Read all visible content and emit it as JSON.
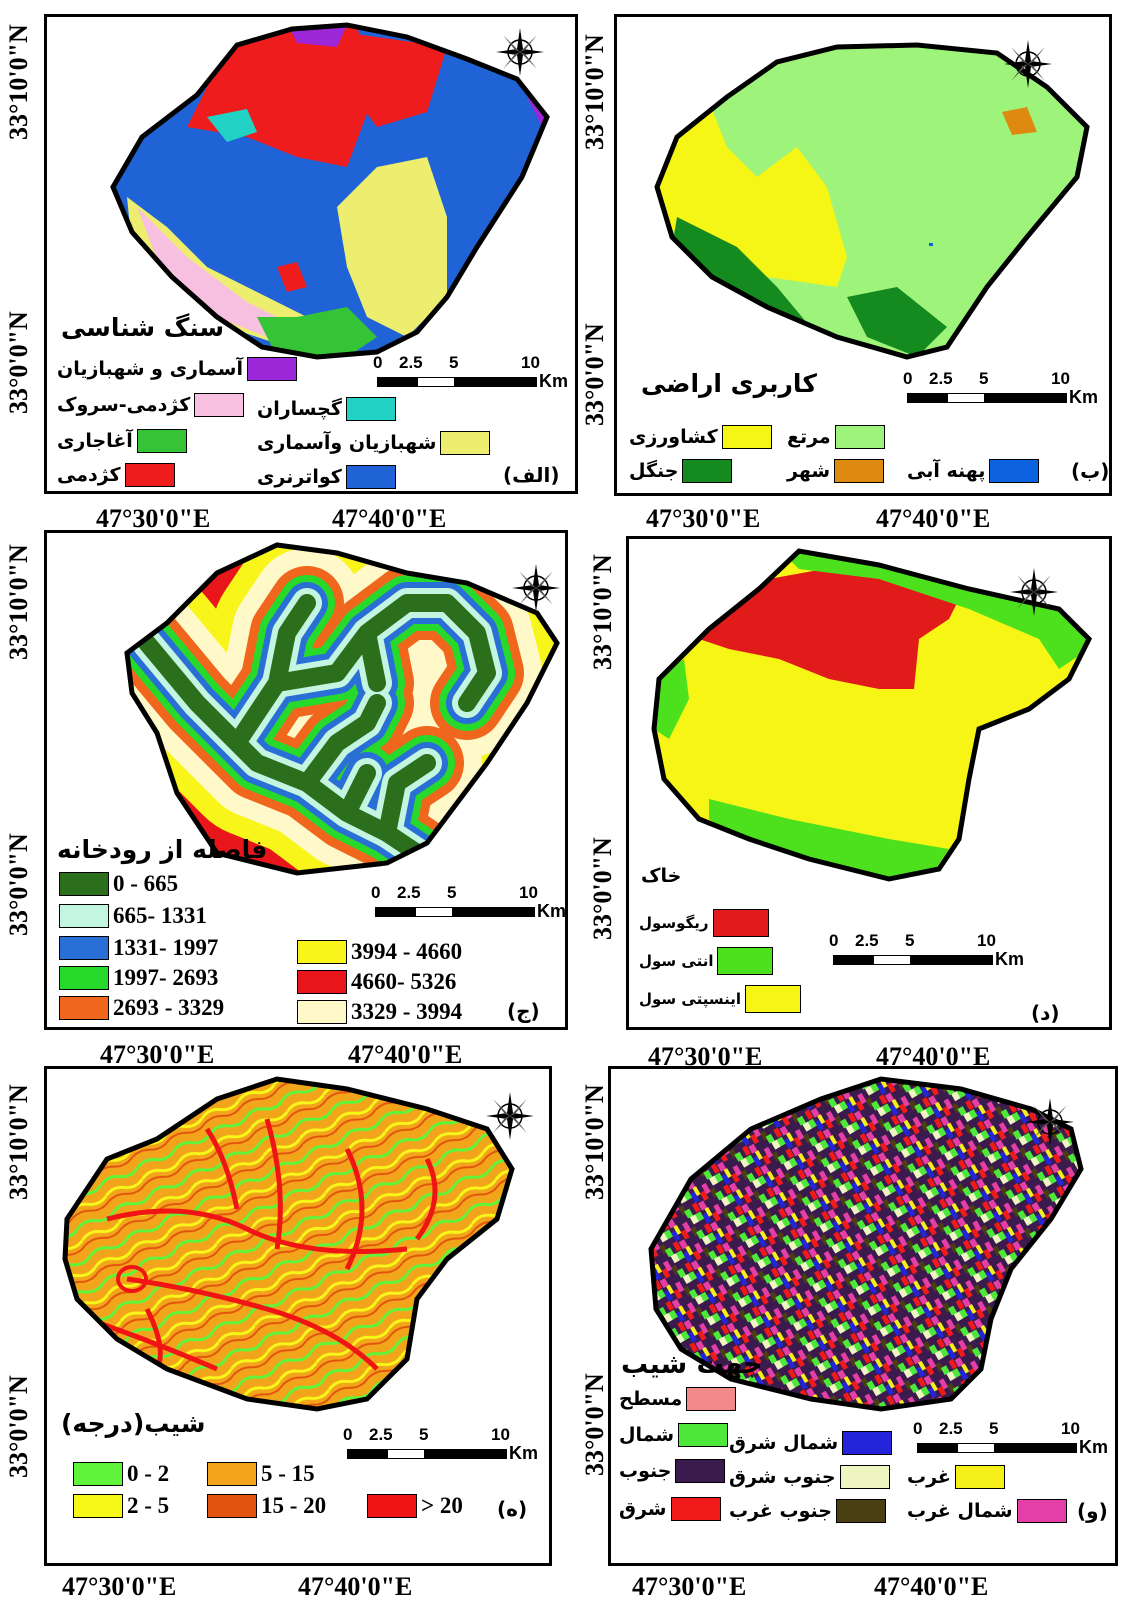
{
  "panels": {
    "alef": {
      "tag": "(الف)",
      "title": "سنگ شناسی",
      "legend": [
        {
          "label": "آسماری و شهبازیان",
          "color": "#9b27d8"
        },
        {
          "label": "کژدمی-سروک",
          "color": "#f7bfe0"
        },
        {
          "label": "گچساران",
          "color": "#22d3c5"
        },
        {
          "label": "آغاجاری",
          "color": "#35c435"
        },
        {
          "label": "شهبازیان وآسماری",
          "color": "#eded70"
        },
        {
          "label": "کژدمی",
          "color": "#ee1c1c"
        },
        {
          "label": "کواترنری",
          "color": "#1f63d6"
        }
      ],
      "scale": {
        "n0": "0",
        "n1": "2.5",
        "n2": "5",
        "n3": "10",
        "unit": "Km"
      },
      "lat_top": "33°10'0\"N",
      "lat_bottom": "33°0'0\"N",
      "lon_left": "47°30'0\"E",
      "lon_right": "47°40'0\"E"
    },
    "be": {
      "tag": "(ب)",
      "title": "کاربری اراضی",
      "legend": [
        {
          "label": "کشاورزی",
          "color": "#f5f516"
        },
        {
          "label": "مرتع",
          "color": "#9ef47a"
        },
        {
          "label": "جنگل",
          "color": "#158a1e"
        },
        {
          "label": "شهر",
          "color": "#de8a10"
        },
        {
          "label": "پهنه آبی",
          "color": "#0d62e0"
        }
      ],
      "scale": {
        "n0": "0",
        "n1": "2.5",
        "n2": "5",
        "n3": "10",
        "unit": "Km"
      },
      "lat_top": "33°10'0\"N",
      "lat_bottom": "33°0'0\"N",
      "lon_left": "47°30'0\"E",
      "lon_right": "47°40'0\"E"
    },
    "jim": {
      "tag": "(ج)",
      "title": "فاصله از رودخانه",
      "legend": [
        {
          "label": "0 - 665",
          "color": "#2b6e1c"
        },
        {
          "label": "665- 1331",
          "color": "#c4f5e0"
        },
        {
          "label": "1331- 1997",
          "color": "#2a6fd6"
        },
        {
          "label": "1997- 2693",
          "color": "#27d92a"
        },
        {
          "label": "2693 - 3329",
          "color": "#f0661d"
        },
        {
          "label": "3994 - 4660",
          "color": "#f7f51a"
        },
        {
          "label": "4660- 5326",
          "color": "#e8161a"
        },
        {
          "label": "3329 - 3994",
          "color": "#fff8c8"
        }
      ],
      "scale": {
        "n0": "0",
        "n1": "2.5",
        "n2": "5",
        "n3": "10",
        "unit": "Km"
      },
      "lat_top": "33°10'0\"N",
      "lat_bottom": "33°0'0\"N",
      "lon_left": "47°30'0\"E",
      "lon_right": "47°40'0\"E"
    },
    "dal": {
      "tag": "(د)",
      "title": "خاک",
      "legend": [
        {
          "label": "ریگوسول",
          "color": "#e11a1a"
        },
        {
          "label": "انتی سول",
          "color": "#4de01c"
        },
        {
          "label": "اینسپتی سول",
          "color": "#f7f516"
        }
      ],
      "scale": {
        "n0": "0",
        "n1": "2.5",
        "n2": "5",
        "n3": "10",
        "unit": "Km"
      },
      "lat_top": "33°10'0\"N",
      "lat_bottom": "33°0'0\"N",
      "lon_left": "47°30'0\"E",
      "lon_right": "47°40'0\"E"
    },
    "he": {
      "tag": "(ه)",
      "title": "شیب(درجه)",
      "legend": [
        {
          "label": "0 - 2",
          "color": "#5ef53a"
        },
        {
          "label": "5 - 15",
          "color": "#f2a51a"
        },
        {
          "label": "2 - 5",
          "color": "#f7f71a"
        },
        {
          "label": "15 - 20",
          "color": "#e2530f"
        },
        {
          "label": "> 20",
          "color": "#f01414"
        }
      ],
      "scale": {
        "n0": "0",
        "n1": "2.5",
        "n2": "5",
        "n3": "10",
        "unit": "Km"
      },
      "lat_top": "33°10'0\"N",
      "lat_bottom": "33°0'0\"N",
      "lon_left": "47°30'0\"E",
      "lon_right": "47°40'0\"E"
    },
    "vav": {
      "tag": "(و)",
      "title": "جهت شیب",
      "legend": [
        {
          "label": "مسطح",
          "color": "#f38a8a"
        },
        {
          "label": "شمال",
          "color": "#4de83a"
        },
        {
          "label": "شمال شرق",
          "color": "#2424d8"
        },
        {
          "label": "جنوب",
          "color": "#3b1b4e"
        },
        {
          "label": "جنوب شرق",
          "color": "#eef5c0"
        },
        {
          "label": "غرب",
          "color": "#f5ef1a"
        },
        {
          "label": "شرق",
          "color": "#f01a1a"
        },
        {
          "label": "جنوب غرب",
          "color": "#4a3f12"
        },
        {
          "label": "شمال غرب",
          "color": "#e43fa6"
        }
      ],
      "scale": {
        "n0": "0",
        "n1": "2.5",
        "n2": "5",
        "n3": "10",
        "unit": "Km"
      },
      "lat_top": "33°10'0\"N",
      "lat_bottom": "33°0'0\"N",
      "lon_left": "47°30'0\"E",
      "lon_right": "47°40'0\"E"
    }
  },
  "compass": {
    "n": "N",
    "s": "S",
    "e": "E",
    "w": "W"
  }
}
